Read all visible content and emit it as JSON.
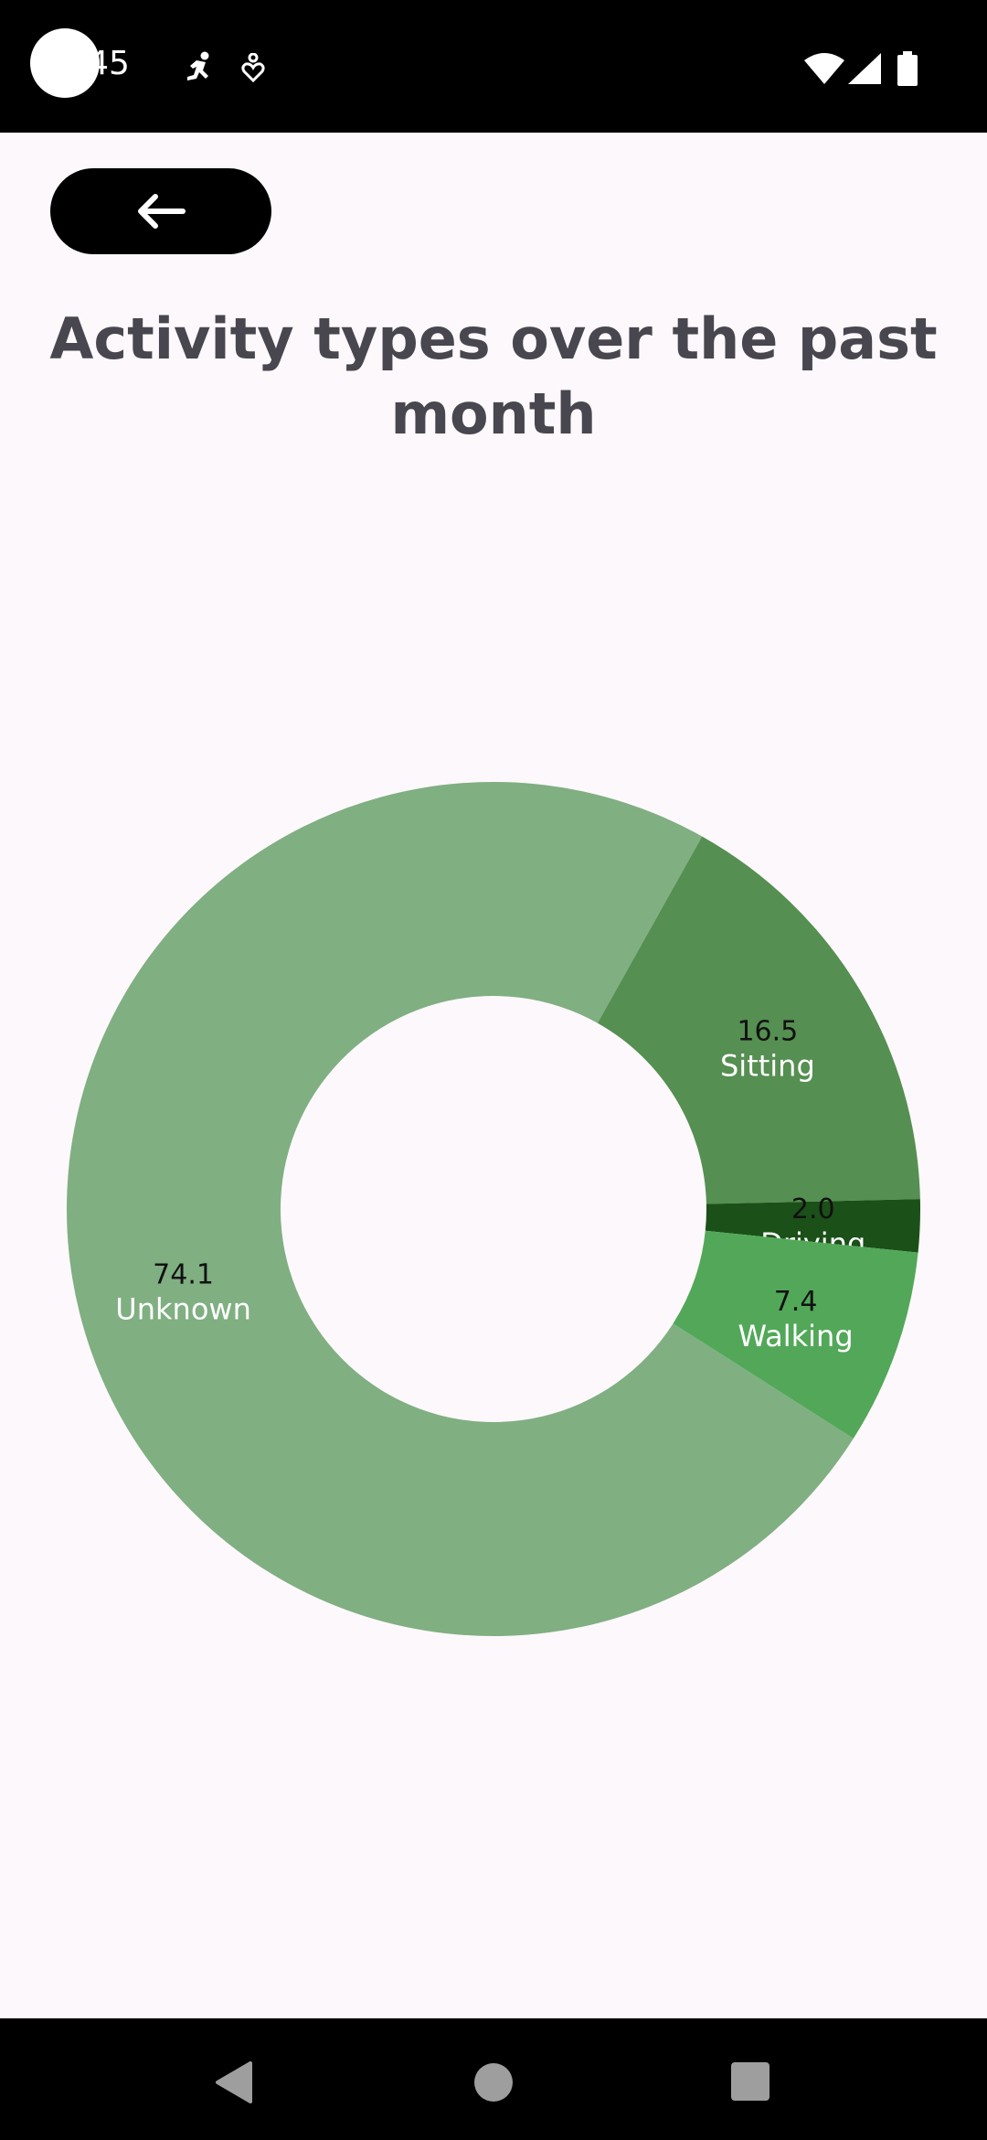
{
  "status_bar": {
    "time": ":45",
    "icons": [
      "running-icon",
      "health-icon",
      "wifi-icon",
      "cellular-signal-icon",
      "battery-icon"
    ]
  },
  "header": {
    "back_button_icon": "arrow-left-icon",
    "title": "Activity types over the past month"
  },
  "colors": {
    "background": "#fdf8fb",
    "title": "#48464e",
    "unknown": "#80af82",
    "sitting": "#558f51",
    "driving": "#1b5019",
    "walking": "#52a858"
  },
  "chart_data": {
    "type": "pie",
    "donut": true,
    "slices": [
      {
        "name": "Unknown",
        "value": 74.1,
        "label": "74.1"
      },
      {
        "name": "Sitting",
        "value": 16.5,
        "label": "16.5"
      },
      {
        "name": "Driving",
        "value": 2.0,
        "label": "2.0"
      },
      {
        "name": "Walking",
        "value": 7.4,
        "label": "7.4"
      }
    ]
  },
  "nav_bar": {
    "buttons": [
      "back-triangle-icon",
      "home-circle-icon",
      "recents-square-icon"
    ]
  }
}
